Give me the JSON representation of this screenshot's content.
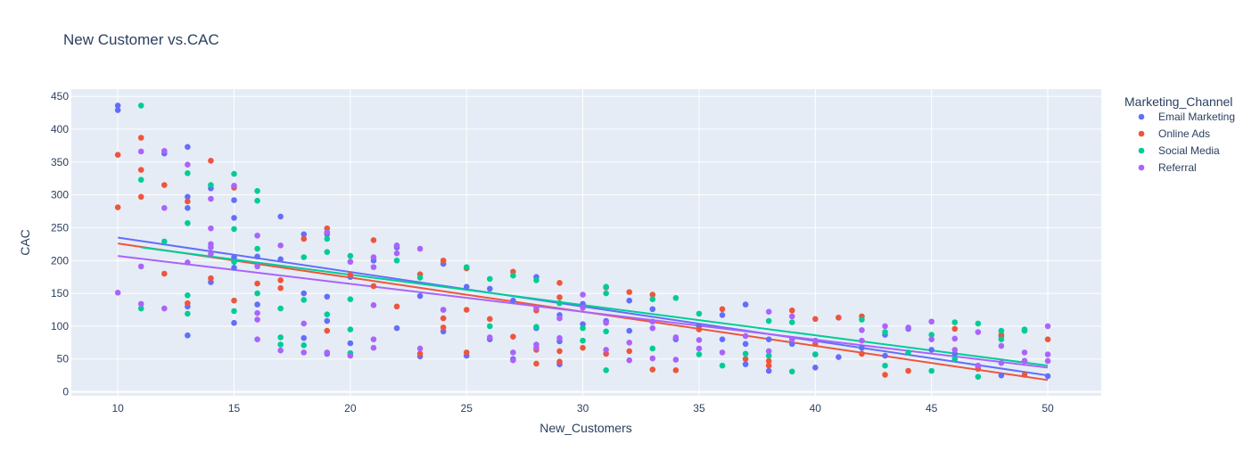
{
  "chart_data": {
    "type": "scatter",
    "title": "New Customer vs.CAC",
    "xlabel": "New_Customers",
    "ylabel": "CAC",
    "xlim": [
      8,
      52.3
    ],
    "ylim": [
      -6,
      461
    ],
    "xticks": [
      10,
      15,
      20,
      25,
      30,
      35,
      40,
      45,
      50
    ],
    "yticks": [
      0,
      50,
      100,
      150,
      200,
      250,
      300,
      350,
      400,
      450
    ],
    "legend_title": "Marketing_Channel",
    "legend_position": "top-right",
    "grid": true,
    "series": [
      {
        "name": "Email Marketing",
        "color": "#636efa",
        "trendline": [
          [
            10,
            235
          ],
          [
            50,
            25
          ]
        ],
        "points": [
          [
            10,
            436
          ],
          [
            10,
            429
          ],
          [
            12,
            363
          ],
          [
            13,
            373
          ],
          [
            13,
            297
          ],
          [
            13,
            280
          ],
          [
            13,
            130
          ],
          [
            13,
            86
          ],
          [
            14,
            310
          ],
          [
            14,
            167
          ],
          [
            15,
            265
          ],
          [
            15,
            292
          ],
          [
            15,
            205
          ],
          [
            15,
            189
          ],
          [
            15,
            105
          ],
          [
            16,
            206
          ],
          [
            16,
            133
          ],
          [
            17,
            267
          ],
          [
            17,
            202
          ],
          [
            18,
            240
          ],
          [
            18,
            150
          ],
          [
            18,
            82
          ],
          [
            19,
            240
          ],
          [
            19,
            145
          ],
          [
            19,
            108
          ],
          [
            19,
            58
          ],
          [
            20,
            175
          ],
          [
            20,
            74
          ],
          [
            21,
            200
          ],
          [
            22,
            220
          ],
          [
            22,
            97
          ],
          [
            23,
            146
          ],
          [
            23,
            54
          ],
          [
            24,
            195
          ],
          [
            24,
            125
          ],
          [
            24,
            92
          ],
          [
            25,
            160
          ],
          [
            25,
            55
          ],
          [
            26,
            157
          ],
          [
            26,
            80
          ],
          [
            27,
            139
          ],
          [
            27,
            50
          ],
          [
            28,
            175
          ],
          [
            28,
            97
          ],
          [
            29,
            117
          ],
          [
            29,
            77
          ],
          [
            29,
            42
          ],
          [
            30,
            134
          ],
          [
            30,
            103
          ],
          [
            31,
            108
          ],
          [
            32,
            139
          ],
          [
            32,
            93
          ],
          [
            33,
            126
          ],
          [
            34,
            80
          ],
          [
            35,
            100
          ],
          [
            36,
            117
          ],
          [
            36,
            80
          ],
          [
            37,
            133
          ],
          [
            37,
            73
          ],
          [
            37,
            42
          ],
          [
            38,
            80
          ],
          [
            38,
            32
          ],
          [
            39,
            73
          ],
          [
            40,
            57
          ],
          [
            40,
            37
          ],
          [
            41,
            113
          ],
          [
            41,
            53
          ],
          [
            42,
            67
          ],
          [
            43,
            87
          ],
          [
            43,
            55
          ],
          [
            44,
            96
          ],
          [
            45,
            64
          ],
          [
            46,
            58
          ],
          [
            47,
            39
          ],
          [
            48,
            85
          ],
          [
            48,
            25
          ],
          [
            49,
            47
          ],
          [
            50,
            24
          ]
        ]
      },
      {
        "name": "Online Ads",
        "color": "#ef553b",
        "trendline": [
          [
            10,
            226
          ],
          [
            50,
            18
          ]
        ],
        "points": [
          [
            10,
            361
          ],
          [
            10,
            281
          ],
          [
            11,
            387
          ],
          [
            11,
            338
          ],
          [
            11,
            297
          ],
          [
            12,
            315
          ],
          [
            12,
            180
          ],
          [
            13,
            290
          ],
          [
            13,
            135
          ],
          [
            14,
            352
          ],
          [
            14,
            173
          ],
          [
            15,
            311
          ],
          [
            15,
            139
          ],
          [
            16,
            165
          ],
          [
            17,
            170
          ],
          [
            17,
            158
          ],
          [
            18,
            233
          ],
          [
            19,
            249
          ],
          [
            19,
            93
          ],
          [
            20,
            178
          ],
          [
            21,
            231
          ],
          [
            21,
            161
          ],
          [
            22,
            130
          ],
          [
            23,
            179
          ],
          [
            23,
            58
          ],
          [
            24,
            200
          ],
          [
            24,
            112
          ],
          [
            24,
            98
          ],
          [
            25,
            188
          ],
          [
            25,
            125
          ],
          [
            25,
            60
          ],
          [
            26,
            111
          ],
          [
            27,
            183
          ],
          [
            27,
            84
          ],
          [
            28,
            124
          ],
          [
            28,
            64
          ],
          [
            28,
            43
          ],
          [
            29,
            166
          ],
          [
            29,
            144
          ],
          [
            29,
            62
          ],
          [
            29,
            46
          ],
          [
            30,
            67
          ],
          [
            31,
            159
          ],
          [
            31,
            58
          ],
          [
            32,
            152
          ],
          [
            32,
            62
          ],
          [
            33,
            148
          ],
          [
            33,
            34
          ],
          [
            34,
            33
          ],
          [
            35,
            95
          ],
          [
            36,
            126
          ],
          [
            37,
            50
          ],
          [
            38,
            47
          ],
          [
            38,
            40
          ],
          [
            39,
            124
          ],
          [
            40,
            111
          ],
          [
            40,
            73
          ],
          [
            41,
            113
          ],
          [
            42,
            115
          ],
          [
            42,
            58
          ],
          [
            43,
            26
          ],
          [
            44,
            32
          ],
          [
            46,
            96
          ],
          [
            47,
            35
          ],
          [
            48,
            87
          ],
          [
            49,
            26
          ],
          [
            50,
            80
          ]
        ]
      },
      {
        "name": "Social Media",
        "color": "#00cc96",
        "trendline": [
          [
            11,
            220
          ],
          [
            50,
            40
          ]
        ],
        "points": [
          [
            11,
            436
          ],
          [
            11,
            323
          ],
          [
            11,
            127
          ],
          [
            12,
            229
          ],
          [
            13,
            333
          ],
          [
            13,
            257
          ],
          [
            13,
            147
          ],
          [
            13,
            119
          ],
          [
            14,
            315
          ],
          [
            15,
            332
          ],
          [
            15,
            248
          ],
          [
            15,
            198
          ],
          [
            15,
            123
          ],
          [
            16,
            306
          ],
          [
            16,
            291
          ],
          [
            16,
            218
          ],
          [
            16,
            150
          ],
          [
            17,
            127
          ],
          [
            17,
            83
          ],
          [
            17,
            72
          ],
          [
            18,
            205
          ],
          [
            18,
            140
          ],
          [
            18,
            71
          ],
          [
            19,
            233
          ],
          [
            19,
            213
          ],
          [
            19,
            118
          ],
          [
            20,
            207
          ],
          [
            20,
            141
          ],
          [
            20,
            95
          ],
          [
            20,
            59
          ],
          [
            22,
            200
          ],
          [
            23,
            174
          ],
          [
            25,
            190
          ],
          [
            26,
            172
          ],
          [
            26,
            100
          ],
          [
            27,
            177
          ],
          [
            28,
            170
          ],
          [
            28,
            99
          ],
          [
            29,
            135
          ],
          [
            30,
            97
          ],
          [
            30,
            78
          ],
          [
            31,
            160
          ],
          [
            31,
            150
          ],
          [
            31,
            92
          ],
          [
            31,
            33
          ],
          [
            33,
            141
          ],
          [
            33,
            66
          ],
          [
            34,
            143
          ],
          [
            35,
            119
          ],
          [
            35,
            57
          ],
          [
            36,
            40
          ],
          [
            37,
            58
          ],
          [
            38,
            108
          ],
          [
            38,
            55
          ],
          [
            39,
            106
          ],
          [
            39,
            31
          ],
          [
            40,
            57
          ],
          [
            42,
            110
          ],
          [
            43,
            91
          ],
          [
            43,
            40
          ],
          [
            44,
            60
          ],
          [
            45,
            87
          ],
          [
            45,
            32
          ],
          [
            46,
            106
          ],
          [
            46,
            50
          ],
          [
            47,
            104
          ],
          [
            47,
            23
          ],
          [
            48,
            93
          ],
          [
            48,
            80
          ],
          [
            49,
            95
          ],
          [
            49,
            93
          ]
        ]
      },
      {
        "name": "Referral",
        "color": "#ab63fa",
        "trendline": [
          [
            10,
            207
          ],
          [
            50,
            37
          ]
        ],
        "points": [
          [
            10,
            151
          ],
          [
            11,
            366
          ],
          [
            11,
            191
          ],
          [
            11,
            134
          ],
          [
            12,
            367
          ],
          [
            12,
            280
          ],
          [
            12,
            127
          ],
          [
            13,
            346
          ],
          [
            13,
            197
          ],
          [
            14,
            294
          ],
          [
            14,
            249
          ],
          [
            14,
            225
          ],
          [
            14,
            220
          ],
          [
            14,
            210
          ],
          [
            15,
            314
          ],
          [
            16,
            238
          ],
          [
            16,
            191
          ],
          [
            16,
            120
          ],
          [
            16,
            110
          ],
          [
            16,
            80
          ],
          [
            17,
            223
          ],
          [
            17,
            63
          ],
          [
            18,
            104
          ],
          [
            18,
            60
          ],
          [
            19,
            243
          ],
          [
            19,
            60
          ],
          [
            20,
            198
          ],
          [
            20,
            55
          ],
          [
            21,
            205
          ],
          [
            21,
            190
          ],
          [
            21,
            132
          ],
          [
            21,
            80
          ],
          [
            21,
            67
          ],
          [
            22,
            223
          ],
          [
            22,
            211
          ],
          [
            23,
            218
          ],
          [
            23,
            66
          ],
          [
            24,
            125
          ],
          [
            26,
            83
          ],
          [
            27,
            60
          ],
          [
            27,
            48
          ],
          [
            28,
            128
          ],
          [
            28,
            72
          ],
          [
            28,
            67
          ],
          [
            29,
            112
          ],
          [
            29,
            82
          ],
          [
            30,
            148
          ],
          [
            30,
            128
          ],
          [
            31,
            105
          ],
          [
            31,
            64
          ],
          [
            32,
            75
          ],
          [
            32,
            48
          ],
          [
            33,
            107
          ],
          [
            33,
            97
          ],
          [
            33,
            51
          ],
          [
            34,
            83
          ],
          [
            34,
            49
          ],
          [
            35,
            79
          ],
          [
            35,
            66
          ],
          [
            36,
            60
          ],
          [
            37,
            85
          ],
          [
            38,
            122
          ],
          [
            38,
            62
          ],
          [
            39,
            115
          ],
          [
            39,
            80
          ],
          [
            40,
            78
          ],
          [
            42,
            94
          ],
          [
            42,
            78
          ],
          [
            43,
            100
          ],
          [
            44,
            98
          ],
          [
            45,
            107
          ],
          [
            45,
            80
          ],
          [
            46,
            81
          ],
          [
            46,
            64
          ],
          [
            47,
            91
          ],
          [
            47,
            40
          ],
          [
            48,
            70
          ],
          [
            48,
            44
          ],
          [
            49,
            60
          ],
          [
            49,
            47
          ],
          [
            50,
            100
          ],
          [
            50,
            57
          ],
          [
            50,
            47
          ]
        ]
      }
    ]
  }
}
